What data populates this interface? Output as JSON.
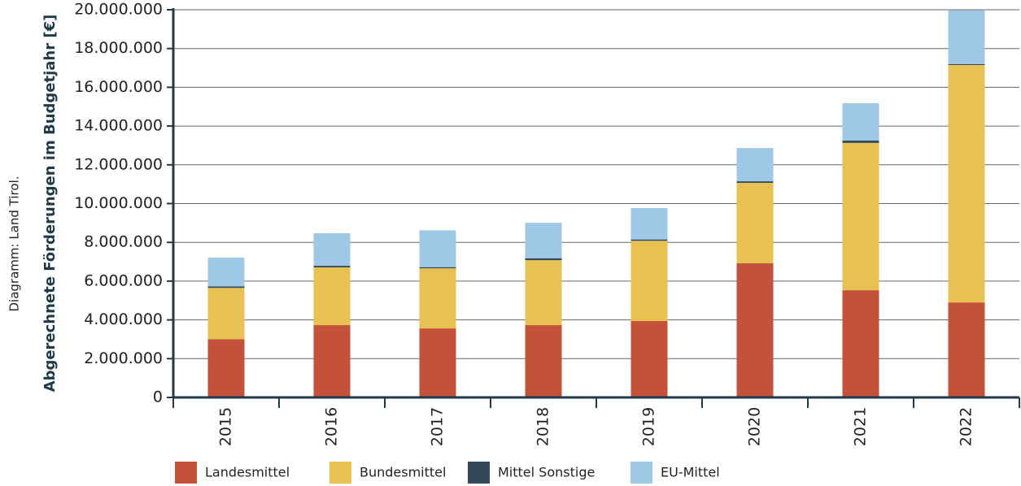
{
  "chart_data": {
    "type": "stacked-bar",
    "y_label": "Abgerechnete Förderungen im Budgetjahr [€]",
    "source": "Diagramm: Land Tirol.",
    "categories": [
      "2015",
      "2016",
      "2017",
      "2018",
      "2019",
      "2020",
      "2021",
      "2022"
    ],
    "series": [
      {
        "name": "Landesmittel",
        "color": "#c4523a",
        "values": [
          3000000,
          3730000,
          3560000,
          3730000,
          3940000,
          6920000,
          5530000,
          4900000
        ]
      },
      {
        "name": "Bundesmittel",
        "color": "#e8c153",
        "values": [
          2650000,
          2980000,
          3100000,
          3350000,
          4140000,
          4150000,
          7600000,
          12250000
        ]
      },
      {
        "name": "Mittel Sonstige",
        "color": "#33495a",
        "values": [
          80000,
          80000,
          60000,
          100000,
          70000,
          80000,
          120000,
          50000
        ]
      },
      {
        "name": "EU-Mittel",
        "color": "#9fc7e6",
        "values": [
          1480000,
          1680000,
          1900000,
          1830000,
          1620000,
          1720000,
          1930000,
          2770000
        ]
      }
    ],
    "ylim": [
      0,
      20000000
    ],
    "yticks": [
      0,
      {
        "value": 2000000,
        "label": "2.000.000"
      },
      {
        "value": 4000000,
        "label": "4.000.000"
      },
      {
        "value": 6000000,
        "label": "6.000.000"
      },
      {
        "value": 8000000,
        "label": "8.000.000"
      },
      {
        "value": 10000000,
        "label": "10.000.000"
      },
      {
        "value": 12000000,
        "label": "12.000.000"
      },
      {
        "value": 14000000,
        "label": "14.000.000"
      },
      {
        "value": 16000000,
        "label": "16.000.000"
      },
      {
        "value": 18000000,
        "label": "18.000.000"
      },
      {
        "value": 20000000,
        "label": "20.000.000"
      }
    ],
    "grid": true
  }
}
